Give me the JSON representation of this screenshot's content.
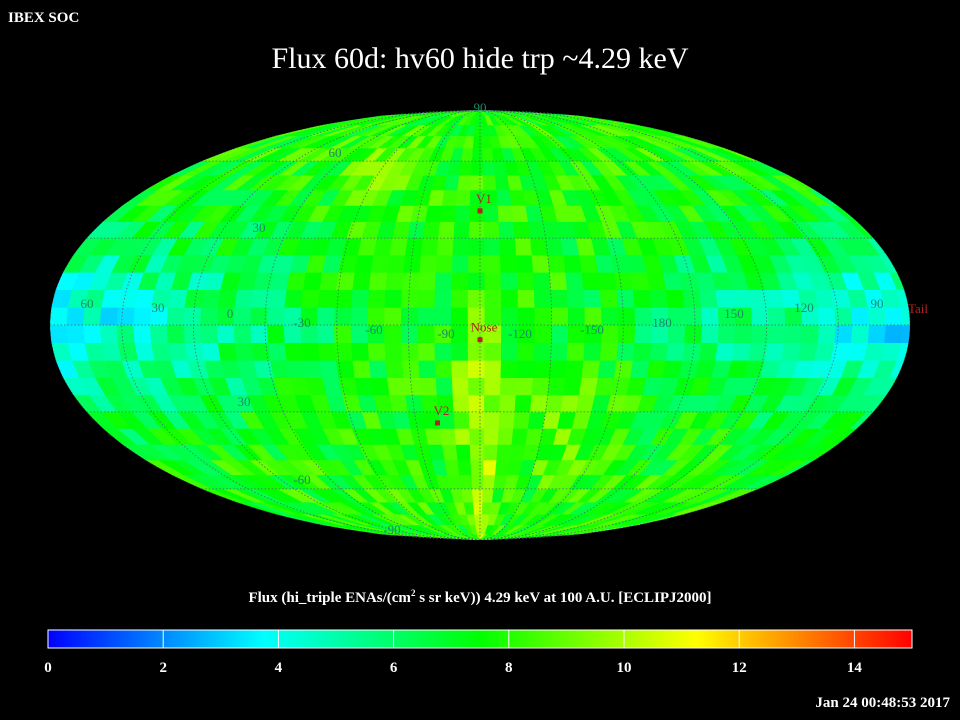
{
  "header": {
    "corner_label": "IBEX SOC",
    "title": "Flux   60d: hv60 hide trp ~4.29 keV"
  },
  "map": {
    "projection": "Mollweide (ecliptic J2000)",
    "lat_labels_north": [
      "90",
      "60",
      "30"
    ],
    "lat_labels_south": [
      "30",
      "-60",
      "-90"
    ],
    "lon_labels": [
      "60",
      "30",
      "0",
      "-30",
      "-60",
      "-90",
      "-120",
      "-150",
      "180",
      "150",
      "120",
      "90"
    ],
    "label_color": "#1a8a6a",
    "markers": [
      {
        "name": "V1",
        "lon": 0,
        "lat": 40
      },
      {
        "name": "Nose",
        "lon": 0,
        "lat": -5
      },
      {
        "name": "V2",
        "lon": -20,
        "lat": -34
      },
      {
        "name": "Tail",
        "lon": 180,
        "lat": 0
      }
    ],
    "marker_color": "#b22222"
  },
  "colorbar": {
    "title_part1": "Flux (hi_triple ENAs/(cm",
    "title_sup": "2",
    "title_part2": " s sr keV))  4.29 keV at 100 A.U. [ECLIPJ2000]",
    "min": 0,
    "max": 15,
    "ticks": [
      "0",
      "2",
      "4",
      "6",
      "8",
      "10",
      "12",
      "14"
    ],
    "colors": [
      "#0000ff",
      "#0080ff",
      "#00ffff",
      "#00ff80",
      "#00ff00",
      "#80ff00",
      "#ffff00",
      "#ff8000",
      "#ff0000"
    ]
  },
  "footer": {
    "timestamp": "Jan 24 00:48:53 2017"
  }
}
